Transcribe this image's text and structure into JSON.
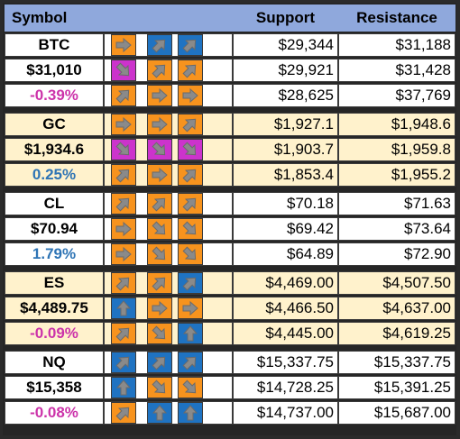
{
  "header": {
    "symbol": "Symbol",
    "support": "Support",
    "resistance": "Resistance"
  },
  "colors": {
    "orange": "#f7931e",
    "blue": "#1f73c2",
    "magenta": "#cc33cc",
    "header": "#8fa8dc",
    "cream": "#fff2cc",
    "neg": "#cc33aa",
    "pos": "#2e74b5"
  },
  "groups": [
    {
      "bg": "white",
      "rows": [
        {
          "label": "BTC",
          "cls": "",
          "arrows": [
            [
              "right",
              "orange"
            ],
            [
              "up-right",
              "blue"
            ],
            [
              "up-right",
              "blue"
            ]
          ],
          "support": "$29,344",
          "resistance": "$31,188"
        },
        {
          "label": "$31,010",
          "cls": "",
          "arrows": [
            [
              "down-right",
              "magenta"
            ],
            [
              "up-right",
              "orange"
            ],
            [
              "up-right",
              "orange"
            ]
          ],
          "support": "$29,921",
          "resistance": "$31,428"
        },
        {
          "label": "-0.39%",
          "cls": "neg",
          "arrows": [
            [
              "up-right",
              "orange"
            ],
            [
              "right",
              "orange"
            ],
            [
              "right",
              "orange"
            ]
          ],
          "support": "$28,625",
          "resistance": "$37,769"
        }
      ]
    },
    {
      "bg": "cream",
      "rows": [
        {
          "label": "GC",
          "cls": "",
          "arrows": [
            [
              "right",
              "orange"
            ],
            [
              "right",
              "orange"
            ],
            [
              "up-right",
              "orange"
            ]
          ],
          "support": "$1,927.1",
          "resistance": "$1,948.6"
        },
        {
          "label": "$1,934.6",
          "cls": "",
          "arrows": [
            [
              "down-right",
              "magenta"
            ],
            [
              "down-right",
              "magenta"
            ],
            [
              "down-right",
              "magenta"
            ]
          ],
          "support": "$1,903.7",
          "resistance": "$1,959.8"
        },
        {
          "label": "0.25%",
          "cls": "pos",
          "arrows": [
            [
              "up-right",
              "orange"
            ],
            [
              "right",
              "orange"
            ],
            [
              "up-right",
              "orange"
            ]
          ],
          "support": "$1,853.4",
          "resistance": "$1,955.2"
        }
      ]
    },
    {
      "bg": "white",
      "rows": [
        {
          "label": "CL",
          "cls": "",
          "arrows": [
            [
              "up-right",
              "orange"
            ],
            [
              "up-right",
              "orange"
            ],
            [
              "up-right",
              "orange"
            ]
          ],
          "support": "$70.18",
          "resistance": "$71.63"
        },
        {
          "label": "$70.94",
          "cls": "",
          "arrows": [
            [
              "right",
              "orange"
            ],
            [
              "down-right",
              "orange"
            ],
            [
              "down-right",
              "orange"
            ]
          ],
          "support": "$69.42",
          "resistance": "$73.64"
        },
        {
          "label": "1.79%",
          "cls": "pos",
          "arrows": [
            [
              "right",
              "orange"
            ],
            [
              "down-right",
              "orange"
            ],
            [
              "down-right",
              "orange"
            ]
          ],
          "support": "$64.89",
          "resistance": "$72.90"
        }
      ]
    },
    {
      "bg": "cream",
      "rows": [
        {
          "label": "ES",
          "cls": "",
          "arrows": [
            [
              "up-right",
              "orange"
            ],
            [
              "up-right",
              "orange"
            ],
            [
              "up-right",
              "blue"
            ]
          ],
          "support": "$4,469.00",
          "resistance": "$4,507.50"
        },
        {
          "label": "$4,489.75",
          "cls": "",
          "arrows": [
            [
              "up",
              "blue"
            ],
            [
              "right",
              "orange"
            ],
            [
              "right",
              "orange"
            ]
          ],
          "support": "$4,466.50",
          "resistance": "$4,637.00"
        },
        {
          "label": "-0.09%",
          "cls": "neg",
          "arrows": [
            [
              "up-right",
              "orange"
            ],
            [
              "down-right",
              "orange"
            ],
            [
              "up",
              "blue"
            ]
          ],
          "support": "$4,445.00",
          "resistance": "$4,619.25"
        }
      ]
    },
    {
      "bg": "white",
      "rows": [
        {
          "label": "NQ",
          "cls": "",
          "arrows": [
            [
              "up-right",
              "blue"
            ],
            [
              "up-right",
              "blue"
            ],
            [
              "up-right",
              "blue"
            ]
          ],
          "support": "$15,337.75",
          "resistance": "$15,337.75"
        },
        {
          "label": "$15,358",
          "cls": "",
          "arrows": [
            [
              "up",
              "blue"
            ],
            [
              "down-right",
              "orange"
            ],
            [
              "down-right",
              "orange"
            ]
          ],
          "support": "$14,728.25",
          "resistance": "$15,391.25"
        },
        {
          "label": "-0.08%",
          "cls": "neg",
          "arrows": [
            [
              "up-right",
              "orange"
            ],
            [
              "up",
              "blue"
            ],
            [
              "up",
              "blue"
            ]
          ],
          "support": "$14,737.00",
          "resistance": "$15,687.00"
        }
      ]
    }
  ]
}
